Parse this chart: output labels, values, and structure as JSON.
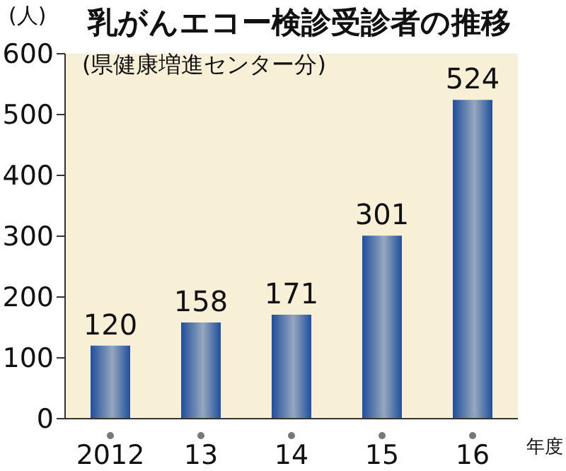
{
  "chart_data": {
    "type": "bar",
    "title": "乳がんエコー検診受診者の推移",
    "subtitle": "(県健康増進センター分)",
    "ylabel": "(人)",
    "xlabel": "年度",
    "categories": [
      "2012",
      "13",
      "14",
      "15",
      "16"
    ],
    "values": [
      120,
      158,
      171,
      301,
      524
    ],
    "color": "#1f4f9e",
    "ylim": [
      0,
      600
    ],
    "yticks": [
      0,
      100,
      200,
      300,
      400,
      500,
      600
    ],
    "data_labels": true,
    "grid": false
  }
}
